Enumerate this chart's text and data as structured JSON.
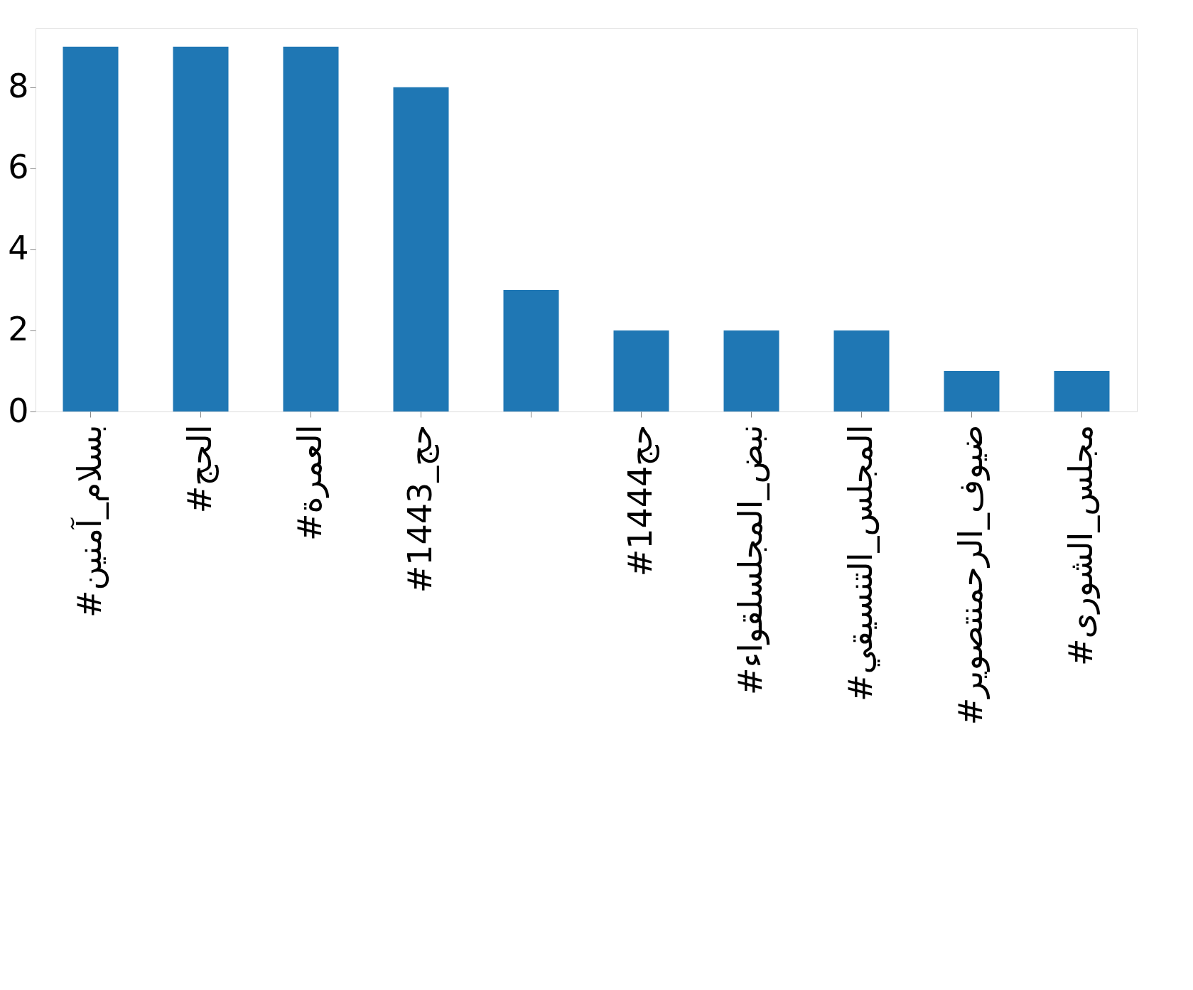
{
  "chart_data": {
    "type": "bar",
    "categories": [
      "#بسلام_آمنين",
      "#الحج",
      "#العمرة",
      "#حج_1443",
      null,
      "#حج1444",
      "#نبض_المجلسلقواء",
      "#المجلس_التنسيقي",
      "#ضيوف_الرحمنتصوير",
      "#مجلس_الشورى"
    ],
    "values": [
      9,
      9,
      9,
      8,
      3,
      2,
      2,
      2,
      1,
      1
    ],
    "color": "#1f77b4",
    "ylim": [
      0,
      9.45
    ],
    "yticks": [
      0,
      2,
      4,
      6,
      8
    ],
    "grid": false
  }
}
